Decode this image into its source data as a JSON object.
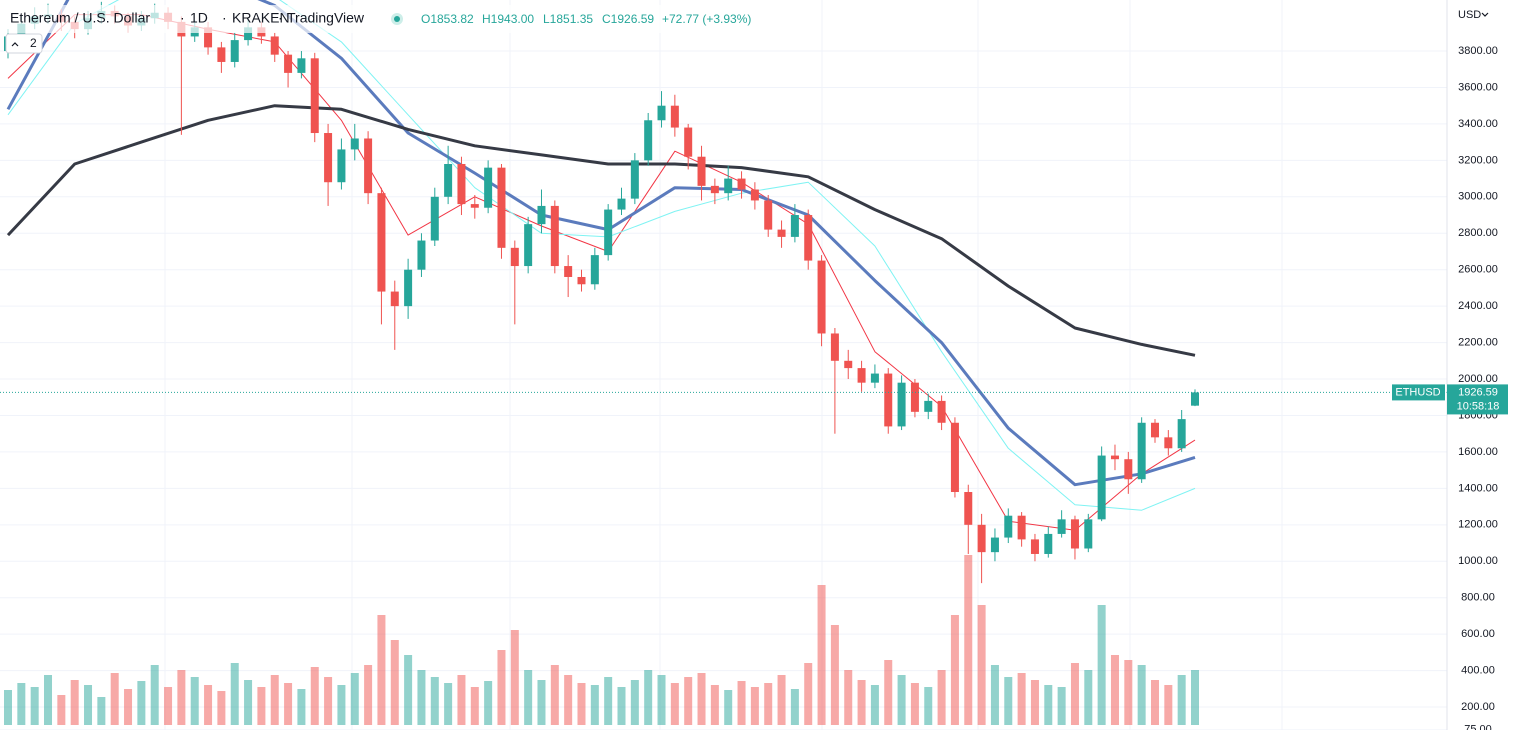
{
  "chart_data": {
    "type": "candlestick",
    "title": "Ethereum / U.S. Dollar",
    "interval": "1D",
    "exchange": "KRAKEN",
    "source": "TradingView",
    "legend": {
      "open": "O1853.82",
      "high": "H1943.00",
      "low": "L1851.35",
      "close": "C1926.59",
      "change": "+72.77 (+3.93%)"
    },
    "currency": "USD",
    "indicator_count": 2,
    "symbol": "ETHUSD",
    "countdown": "10:58:18",
    "up_color": "#26a69a",
    "down_color": "#ef5350",
    "open": [
      3800,
      3880,
      3950,
      3990,
      4000,
      3960,
      3920,
      3980,
      4020,
      3990,
      3940,
      3980,
      4010,
      3960,
      3880,
      3930,
      3820,
      3740,
      3860,
      3930,
      3880,
      3780,
      3680,
      3760,
      3350,
      3080,
      3260,
      3320,
      3020,
      2480,
      2400,
      2600,
      2760,
      3000,
      3180,
      2960,
      2940,
      3160,
      2720,
      2620,
      2850,
      2950,
      2620,
      2560,
      2520,
      2680,
      2930,
      2990,
      3200,
      3420,
      3500,
      3380,
      3220,
      3060,
      3020,
      3100,
      3040,
      2980,
      2820,
      2780,
      2900,
      2650,
      2250,
      2100,
      2060,
      1980,
      2030,
      1740,
      1980,
      1820,
      1880,
      1760,
      1380,
      1200,
      1050,
      1130,
      1250,
      1120,
      1040,
      1150,
      1230,
      1070,
      1230,
      1580,
      1560,
      1450,
      1760,
      1680,
      1620,
      1853.82
    ],
    "high": [
      3920,
      3990,
      4040,
      4060,
      4030,
      3990,
      4020,
      4070,
      4050,
      4010,
      4020,
      4060,
      4040,
      3990,
      3970,
      3960,
      3850,
      3900,
      3980,
      3960,
      3900,
      3800,
      3800,
      3790,
      3400,
      3320,
      3400,
      3360,
      3050,
      2540,
      2660,
      2800,
      3050,
      3280,
      3220,
      3010,
      3200,
      3180,
      2760,
      2890,
      3040,
      2980,
      2680,
      2600,
      2720,
      2960,
      3050,
      3240,
      3460,
      3580,
      3560,
      3400,
      3280,
      3100,
      3170,
      3140,
      3080,
      3010,
      2870,
      2960,
      2930,
      2680,
      2280,
      2160,
      2100,
      2080,
      2060,
      2020,
      2000,
      1920,
      1910,
      1790,
      1420,
      1260,
      1180,
      1290,
      1270,
      1150,
      1190,
      1280,
      1250,
      1260,
      1630,
      1640,
      1600,
      1790,
      1780,
      1720,
      1830,
      1943
    ],
    "low": [
      3760,
      3850,
      3920,
      3950,
      3910,
      3870,
      3890,
      3950,
      3950,
      3900,
      3910,
      3950,
      3920,
      3340,
      3850,
      3780,
      3680,
      3710,
      3830,
      3840,
      3740,
      3600,
      3650,
      3300,
      2950,
      3040,
      3200,
      2960,
      2300,
      2160,
      2330,
      2560,
      2730,
      2960,
      2900,
      2880,
      2910,
      2660,
      2300,
      2580,
      2800,
      2580,
      2450,
      2480,
      2490,
      2650,
      2900,
      2960,
      3170,
      3380,
      3330,
      3150,
      2980,
      2960,
      2980,
      2990,
      2930,
      2780,
      2720,
      2750,
      2600,
      2180,
      1700,
      2000,
      1930,
      1950,
      1700,
      1720,
      1790,
      1780,
      1720,
      1350,
      1040,
      880,
      1000,
      1100,
      1080,
      1000,
      1020,
      1130,
      1010,
      1050,
      1220,
      1500,
      1370,
      1430,
      1650,
      1580,
      1600,
      1851.35
    ],
    "close": [
      3880,
      3950,
      3990,
      4000,
      3960,
      3920,
      3980,
      4020,
      3990,
      3940,
      3980,
      4010,
      3960,
      3880,
      3930,
      3820,
      3740,
      3860,
      3930,
      3880,
      3780,
      3680,
      3760,
      3350,
      3080,
      3260,
      3320,
      3020,
      2480,
      2400,
      2600,
      2760,
      3000,
      3180,
      2960,
      2940,
      3160,
      2720,
      2620,
      2850,
      2950,
      2620,
      2560,
      2520,
      2680,
      2930,
      2990,
      3200,
      3420,
      3500,
      3380,
      3220,
      3060,
      3020,
      3100,
      3040,
      2980,
      2820,
      2780,
      2900,
      2650,
      2250,
      2100,
      2060,
      1980,
      2030,
      1740,
      1980,
      1820,
      1880,
      1760,
      1380,
      1200,
      1050,
      1130,
      1250,
      1120,
      1040,
      1150,
      1230,
      1070,
      1230,
      1580,
      1560,
      1450,
      1760,
      1680,
      1620,
      1780,
      1926.59
    ],
    "volume": [
      35,
      42,
      38,
      50,
      30,
      45,
      40,
      28,
      52,
      36,
      44,
      60,
      38,
      55,
      48,
      40,
      34,
      62,
      45,
      38,
      50,
      42,
      36,
      58,
      48,
      40,
      52,
      60,
      110,
      85,
      70,
      55,
      48,
      42,
      50,
      38,
      44,
      75,
      95,
      55,
      45,
      60,
      50,
      42,
      40,
      48,
      38,
      45,
      55,
      50,
      42,
      48,
      52,
      40,
      35,
      44,
      38,
      42,
      50,
      36,
      62,
      140,
      100,
      55,
      45,
      40,
      65,
      50,
      42,
      38,
      55,
      110,
      170,
      120,
      60,
      48,
      52,
      45,
      40,
      38,
      62,
      55,
      120,
      70,
      65,
      60,
      45,
      40,
      50,
      55
    ],
    "ma": [
      {
        "color": "#f23645",
        "width": 1,
        "x": [
          0,
          5,
          10,
          15,
          20,
          25,
          30,
          35,
          40,
          45,
          50,
          55,
          60,
          65,
          70,
          75,
          80,
          85,
          89
        ],
        "values": [
          3650,
          4000,
          4000,
          3920,
          3850,
          3420,
          2790,
          3000,
          2840,
          2700,
          3250,
          3080,
          2850,
          2150,
          1850,
          1220,
          1170,
          1480,
          1665
        ]
      },
      {
        "color": "#7ff3f3",
        "width": 1,
        "x": [
          0,
          5,
          10,
          15,
          20,
          25,
          30,
          35,
          40,
          45,
          50,
          55,
          60,
          65,
          70,
          75,
          80,
          85,
          89
        ],
        "values": [
          3450,
          3950,
          4150,
          4200,
          4100,
          3850,
          3450,
          3050,
          2800,
          2780,
          2920,
          3020,
          3080,
          2730,
          2150,
          1620,
          1310,
          1280,
          1400
        ]
      },
      {
        "color": "#5b7bbd",
        "width": 3,
        "x": [
          0,
          5,
          10,
          15,
          20,
          25,
          30,
          35,
          40,
          45,
          50,
          55,
          60,
          65,
          70,
          75,
          80,
          85,
          89
        ],
        "values": [
          3480,
          4150,
          4250,
          4200,
          4050,
          3760,
          3350,
          3130,
          2900,
          2820,
          3050,
          3040,
          2900,
          2540,
          2200,
          1730,
          1420,
          1480,
          1570
        ]
      },
      {
        "color": "#363a45",
        "width": 3,
        "x": [
          0,
          5,
          10,
          15,
          20,
          25,
          30,
          35,
          40,
          45,
          50,
          55,
          60,
          65,
          70,
          75,
          80,
          85,
          89
        ],
        "values": [
          2790,
          3180,
          3300,
          3420,
          3500,
          3480,
          3370,
          3280,
          3230,
          3180,
          3180,
          3160,
          3110,
          2930,
          2770,
          2510,
          2280,
          2190,
          2130
        ]
      }
    ],
    "ylim": [
      74,
      4080
    ],
    "yticks": [
      {
        "value": 75,
        "label": "75.00"
      },
      {
        "value": 200,
        "label": "200.00"
      },
      {
        "value": 400,
        "label": "400.00"
      },
      {
        "value": 600,
        "label": "600.00"
      },
      {
        "value": 800,
        "label": "800.00"
      },
      {
        "value": 1000,
        "label": "1000.00"
      },
      {
        "value": 1200,
        "label": "1200.00"
      },
      {
        "value": 1400,
        "label": "1400.00"
      },
      {
        "value": 1600,
        "label": "1600.00"
      },
      {
        "value": 1800,
        "label": "1800.00"
      },
      {
        "value": 2000,
        "label": "2000.00"
      },
      {
        "value": 2200,
        "label": "2200.00"
      },
      {
        "value": 2400,
        "label": "2400.00"
      },
      {
        "value": 2600,
        "label": "2600.00"
      },
      {
        "value": 2800,
        "label": "2800.00"
      },
      {
        "value": 3000,
        "label": "3000.00"
      },
      {
        "value": 3200,
        "label": "3200.00"
      },
      {
        "value": 3400,
        "label": "3400.00"
      },
      {
        "value": 3600,
        "label": "3600.00"
      },
      {
        "value": 3800,
        "label": "3800.00"
      }
    ],
    "grid": true
  }
}
